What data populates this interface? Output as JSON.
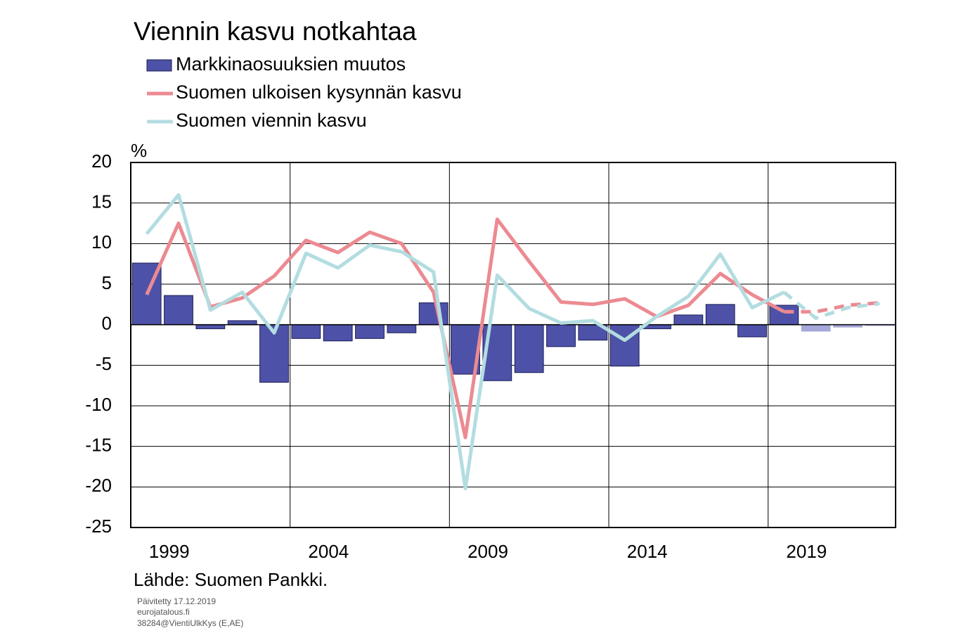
{
  "chart_data": {
    "type": "bar_line",
    "title": "Viennin kasvu notkahtaa",
    "ylabel": "%",
    "source": "Lähde: Suomen Pankki.",
    "notes": [
      "Päivitetty 17.12.2019",
      "eurojatalous.fi",
      "38284@VientiUlkKys (E,AE)"
    ],
    "categories": [
      "1999",
      null,
      null,
      null,
      null,
      "2004",
      null,
      null,
      null,
      null,
      "2009",
      null,
      null,
      null,
      null,
      "2014",
      null,
      null,
      null,
      null,
      "2019",
      null,
      null,
      null
    ],
    "forecast_start": 21,
    "forecast_bar_color": "#a6a9d9",
    "series": [
      {
        "name": "Markkinaosuuksien muutos",
        "kind": "bar",
        "color": "#4d52a8",
        "values": [
          7.6,
          3.6,
          -0.5,
          0.5,
          -7.1,
          -1.7,
          -2.0,
          -1.7,
          -1.0,
          2.7,
          -6.1,
          -6.9,
          -5.9,
          -2.7,
          -1.9,
          -5.1,
          -0.5,
          1.2,
          2.5,
          -1.5,
          2.4,
          -0.8,
          -0.3,
          -0.1
        ]
      },
      {
        "name": "Suomen ulkoisen kysynnän kasvu",
        "kind": "line",
        "color": "#ec8a91",
        "values": [
          3.7,
          12.5,
          2.2,
          3.3,
          6.0,
          10.4,
          8.9,
          11.4,
          10.0,
          4.0,
          -13.9,
          13.0,
          7.8,
          2.8,
          2.5,
          3.2,
          1.0,
          2.4,
          6.3,
          3.7,
          1.6,
          1.6,
          2.4,
          2.7
        ]
      },
      {
        "name": "Suomen viennin kasvu",
        "kind": "line",
        "color": "#b3dde0",
        "values": [
          11.2,
          16.0,
          1.8,
          4.0,
          -1.0,
          8.8,
          7.0,
          9.8,
          9.0,
          6.5,
          -20.2,
          6.1,
          2.0,
          0.2,
          0.5,
          -1.9,
          1.0,
          3.5,
          8.7,
          2.1,
          4.0,
          0.8,
          2.1,
          2.6
        ]
      }
    ],
    "ylim": [
      -25,
      20
    ],
    "yticks": [
      -25,
      -20,
      -15,
      -10,
      -5,
      0,
      5,
      10,
      15,
      20
    ],
    "grid": true
  }
}
